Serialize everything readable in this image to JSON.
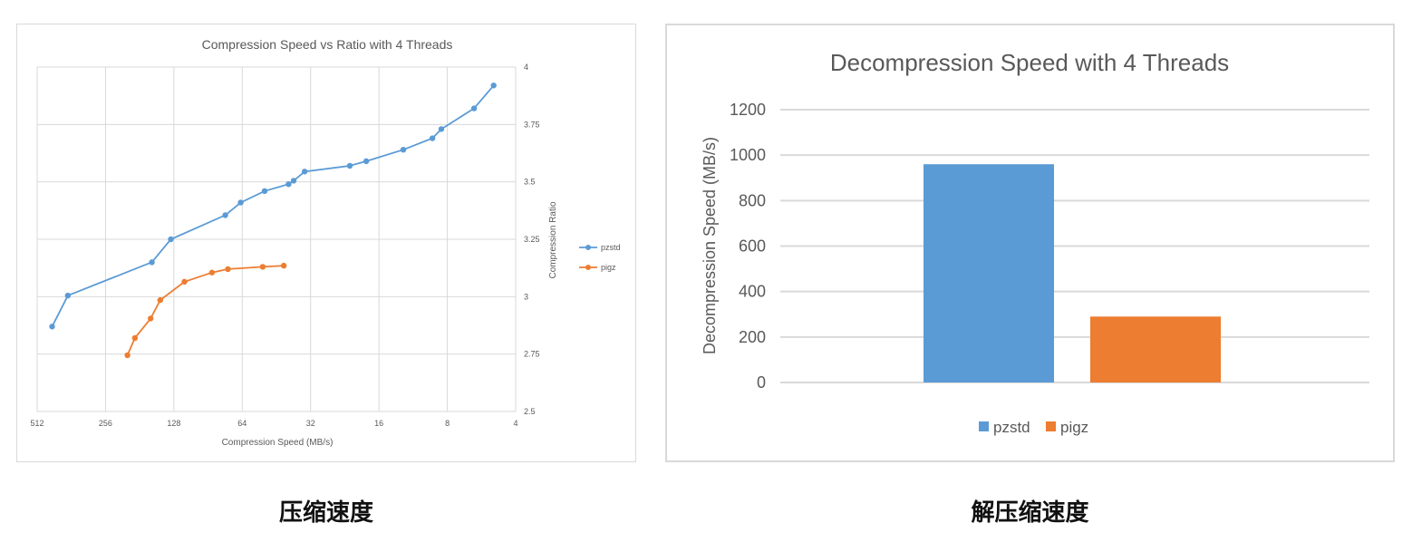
{
  "captions": {
    "left": "压缩速度",
    "right": "解压缩速度"
  },
  "colors": {
    "pzstd": "#5b9bd5",
    "pigz": "#ed7d31",
    "grid": "#d9d9d9",
    "text": "#595959"
  },
  "chart_data": [
    {
      "type": "line",
      "title": "Compression Speed vs Ratio with 4 Threads",
      "xlabel": "Compression Speed (MB/s)",
      "ylabel": "Compression Ratio",
      "x_scale": "log2",
      "x_reversed": true,
      "xlim": [
        512,
        4
      ],
      "ylim": [
        2.5,
        4
      ],
      "x_ticks": [
        "512",
        "256",
        "128",
        "64",
        "32",
        "16",
        "8",
        "4"
      ],
      "y_ticks": [
        "2.5",
        "2.75",
        "3",
        "3.25",
        "3.5",
        "3.75",
        "4"
      ],
      "grid": true,
      "legend": "right",
      "series": [
        {
          "name": "pzstd",
          "points": [
            [
              440,
              2.87
            ],
            [
              375,
              3.005
            ],
            [
              160,
              3.15
            ],
            [
              132,
              3.25
            ],
            [
              76,
              3.355
            ],
            [
              65,
              3.41
            ],
            [
              51,
              3.46
            ],
            [
              40,
              3.49
            ],
            [
              38,
              3.505
            ],
            [
              34,
              3.545
            ],
            [
              21.5,
              3.57
            ],
            [
              18.2,
              3.59
            ],
            [
              12.5,
              3.64
            ],
            [
              9.3,
              3.69
            ],
            [
              8.5,
              3.73
            ],
            [
              6.1,
              3.82
            ],
            [
              5.0,
              3.92
            ]
          ]
        },
        {
          "name": "pigz",
          "points": [
            [
              205,
              2.745
            ],
            [
              190,
              2.82
            ],
            [
              162,
              2.905
            ],
            [
              147,
              2.985
            ],
            [
              115,
              3.065
            ],
            [
              87,
              3.105
            ],
            [
              74,
              3.12
            ],
            [
              52,
              3.13
            ],
            [
              42,
              3.135
            ]
          ]
        }
      ]
    },
    {
      "type": "bar",
      "title": "Decompression Speed with 4 Threads",
      "xlabel": "",
      "ylabel": "Decompression Speed (MB/s)",
      "categories": [
        ""
      ],
      "ylim": [
        0,
        1200
      ],
      "y_ticks": [
        "0",
        "200",
        "400",
        "600",
        "800",
        "1000",
        "1200"
      ],
      "grid": true,
      "legend": "bottom",
      "series": [
        {
          "name": "pzstd",
          "values": [
            960
          ]
        },
        {
          "name": "pigz",
          "values": [
            290
          ]
        }
      ]
    }
  ]
}
